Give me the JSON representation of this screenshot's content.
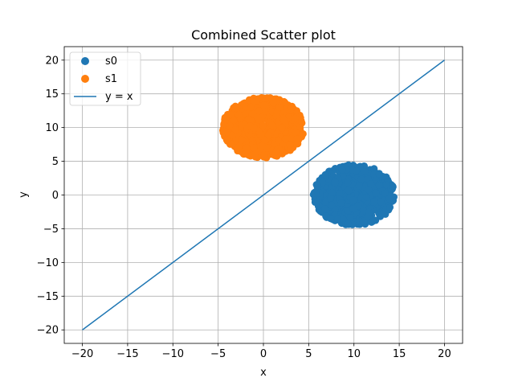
{
  "chart_data": {
    "type": "scatter",
    "title": "Combined Scatter plot",
    "xlabel": "x",
    "ylabel": "y",
    "xlim": [
      -22,
      22
    ],
    "ylim": [
      -22,
      22
    ],
    "xticks": [
      -20,
      -15,
      -10,
      -5,
      0,
      5,
      10,
      15,
      20
    ],
    "yticks": [
      -20,
      -15,
      -10,
      -5,
      0,
      5,
      10,
      15,
      20
    ],
    "xtick_labels": [
      "−20",
      "−15",
      "−10",
      "−5",
      "0",
      "5",
      "10",
      "15",
      "20"
    ],
    "ytick_labels": [
      "−20",
      "−15",
      "−10",
      "−5",
      "0",
      "5",
      "10",
      "15",
      "20"
    ],
    "grid": true,
    "legend_position": "top-left",
    "series": [
      {
        "name": "s0",
        "kind": "scatter",
        "color": "#1f77b4",
        "center": [
          10,
          0
        ],
        "radius": 4.5
      },
      {
        "name": "s1",
        "kind": "scatter",
        "color": "#ff7f0e",
        "center": [
          0,
          10
        ],
        "radius": 4.5
      },
      {
        "name": "y = x",
        "kind": "line",
        "color": "#1f77b4",
        "x": [
          -20,
          20
        ],
        "y": [
          -20,
          20
        ]
      }
    ]
  }
}
